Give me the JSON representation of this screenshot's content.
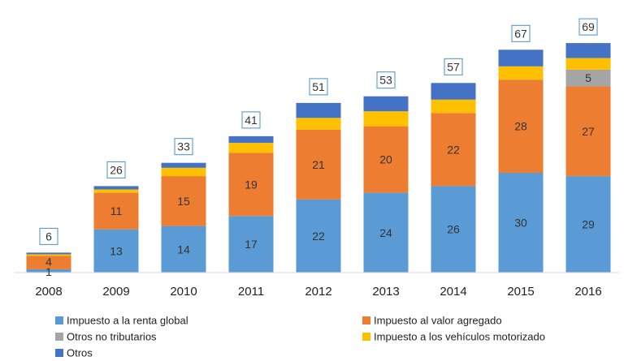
{
  "chart_data": {
    "type": "bar",
    "stacked": true,
    "title": "",
    "xlabel": "",
    "ylabel": "",
    "categories": [
      "2008",
      "2009",
      "2010",
      "2011",
      "2012",
      "2013",
      "2014",
      "2015",
      "2016"
    ],
    "series": [
      {
        "name": "Impuesto a la renta global",
        "color": "#5b9bd5",
        "values": [
          1,
          13,
          14,
          17,
          22,
          24,
          26,
          30,
          29
        ]
      },
      {
        "name": "Impuesto al valor agregado",
        "color": "#ed7d31",
        "values": [
          4,
          11,
          15,
          19,
          21,
          20,
          22,
          28,
          27
        ]
      },
      {
        "name": "Otros no tributarios",
        "color": "#a5a5a5",
        "values": [
          0,
          0,
          0,
          0,
          0,
          0,
          0,
          0,
          5
        ]
      },
      {
        "name": "Impuesto a los vehículos motorizado",
        "color": "#ffc000",
        "values": [
          0.5,
          1,
          2.5,
          3,
          3.5,
          4.5,
          4,
          4,
          3.5
        ]
      },
      {
        "name": "Otros",
        "color": "#4472c4",
        "values": [
          0.5,
          1,
          1.5,
          2,
          4.5,
          4.5,
          5,
          5,
          4.5
        ]
      }
    ],
    "segment_labels": [
      [
        "1",
        "13",
        "14",
        "17",
        "22",
        "24",
        "26",
        "30",
        "29"
      ],
      [
        "4",
        "11",
        "15",
        "19",
        "21",
        "20",
        "22",
        "28",
        "27"
      ],
      [
        "",
        "",
        "",
        "",
        "",
        "",
        "",
        "",
        "5"
      ],
      [
        "",
        "",
        "",
        "",
        "",
        "",
        "",
        "",
        ""
      ],
      [
        "",
        "",
        "",
        "",
        "",
        "",
        "",
        "",
        ""
      ]
    ],
    "totals": [
      "6",
      "26",
      "33",
      "41",
      "51",
      "53",
      "57",
      "67",
      "69"
    ],
    "ylim": [
      0,
      74
    ],
    "grid": false,
    "legend_position": "bottom"
  }
}
